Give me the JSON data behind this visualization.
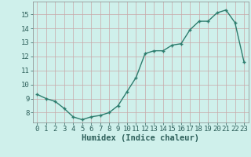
{
  "x": [
    0,
    1,
    2,
    3,
    4,
    5,
    6,
    7,
    8,
    9,
    10,
    11,
    12,
    13,
    14,
    15,
    16,
    17,
    18,
    19,
    20,
    21,
    22,
    23
  ],
  "y": [
    9.3,
    9.0,
    8.8,
    8.3,
    7.7,
    7.5,
    7.7,
    7.8,
    8.0,
    8.5,
    9.5,
    10.5,
    12.2,
    12.4,
    12.4,
    12.8,
    12.9,
    13.9,
    14.5,
    14.5,
    15.1,
    15.3,
    14.4,
    11.6
  ],
  "line_color": "#2d7d6e",
  "marker": "+",
  "marker_size": 3,
  "marker_lw": 1.0,
  "bg_color": "#cff0eb",
  "grid_color": "#c8a8a8",
  "xlabel": "Humidex (Indice chaleur)",
  "ylabel_ticks": [
    8,
    9,
    10,
    11,
    12,
    13,
    14,
    15
  ],
  "ylim": [
    7.3,
    15.9
  ],
  "xlim": [
    -0.5,
    23.5
  ],
  "xlabel_fontsize": 7.5,
  "tick_fontsize": 6.5,
  "linewidth": 1.0
}
